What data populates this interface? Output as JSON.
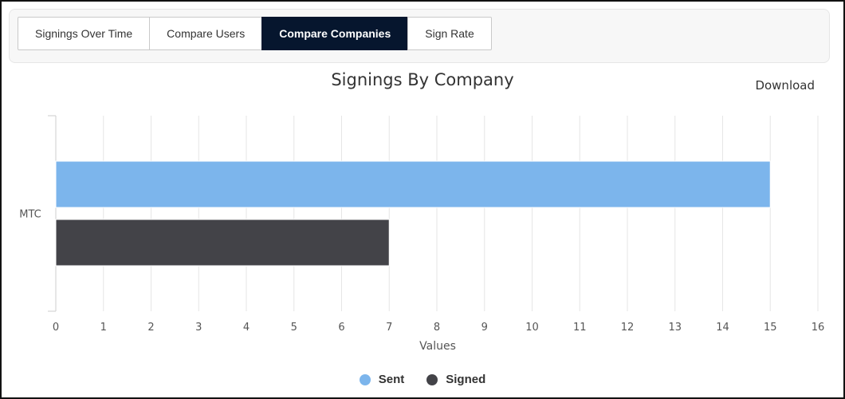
{
  "tabs": [
    {
      "label": "Signings Over Time",
      "active": false
    },
    {
      "label": "Compare Users",
      "active": false
    },
    {
      "label": "Compare Companies",
      "active": true
    },
    {
      "label": "Sign Rate",
      "active": false
    }
  ],
  "download_label": "Download",
  "chart_data": {
    "type": "bar",
    "orientation": "horizontal",
    "title": "Signings By Company",
    "xlabel": "Values",
    "ylabel": "",
    "categories": [
      "MTC"
    ],
    "series": [
      {
        "name": "Sent",
        "values": [
          15
        ],
        "color": "#7cb5ec"
      },
      {
        "name": "Signed",
        "values": [
          7
        ],
        "color": "#434348"
      }
    ],
    "xlim": [
      0,
      16
    ],
    "xticks": [
      0,
      1,
      2,
      3,
      4,
      5,
      6,
      7,
      8,
      9,
      10,
      11,
      12,
      13,
      14,
      15,
      16
    ],
    "grid": true,
    "legend": "bottom-center"
  }
}
